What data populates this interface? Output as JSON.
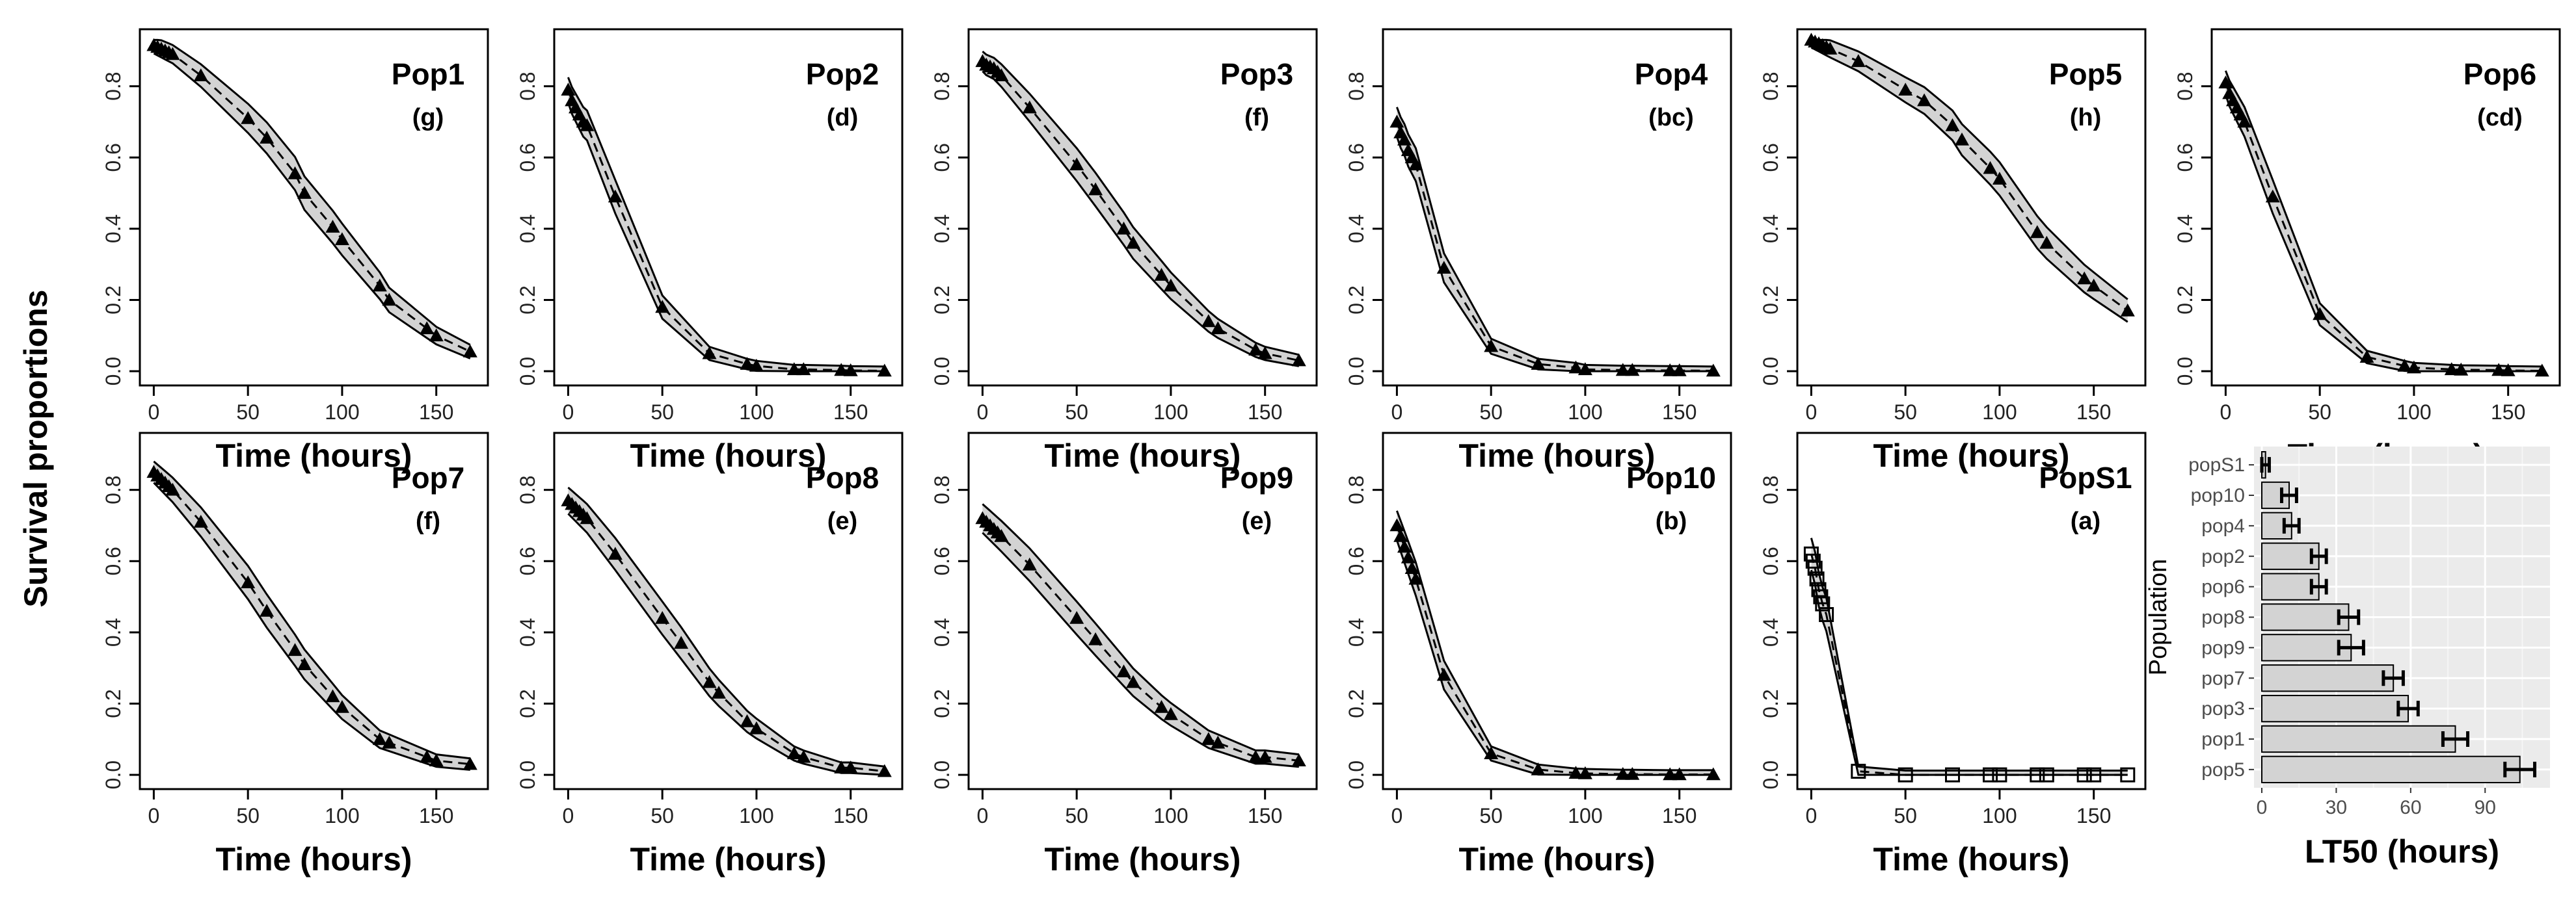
{
  "figure": {
    "shared_ylabel": "Survival proportions",
    "shared_xlabel": "Time (hours)"
  },
  "chart_data": [
    {
      "type": "line",
      "title": "Pop1",
      "letter": "(g)",
      "xlabel": "Time (hours)",
      "ylabel": "Survival proportions",
      "xlim": [
        0,
        170
      ],
      "ylim": [
        0,
        0.92
      ],
      "xticks": [
        0,
        50,
        100,
        150
      ],
      "yticks": [
        0,
        0.2,
        0.4,
        0.6,
        0.8
      ],
      "x": [
        0,
        2,
        4,
        6,
        8,
        10,
        25,
        50,
        60,
        75,
        80,
        95,
        100,
        120,
        125,
        145,
        150,
        168
      ],
      "y": [
        0.915,
        0.91,
        0.905,
        0.9,
        0.895,
        0.89,
        0.83,
        0.71,
        0.655,
        0.555,
        0.5,
        0.405,
        0.37,
        0.24,
        0.2,
        0.12,
        0.1,
        0.055
      ]
    },
    {
      "type": "line",
      "title": "Pop2",
      "letter": "(d)",
      "xlabel": "Time (hours)",
      "ylabel": "",
      "xlim": [
        0,
        170
      ],
      "ylim": [
        0,
        0.92
      ],
      "xticks": [
        0,
        50,
        100,
        150
      ],
      "yticks": [
        0,
        0.2,
        0.4,
        0.6,
        0.8
      ],
      "x": [
        0,
        2,
        4,
        6,
        8,
        10,
        25,
        50,
        75,
        95,
        100,
        120,
        125,
        145,
        150,
        168
      ],
      "y": [
        0.79,
        0.76,
        0.74,
        0.72,
        0.7,
        0.69,
        0.49,
        0.18,
        0.05,
        0.02,
        0.015,
        0.005,
        0.005,
        0.003,
        0.002,
        0.001
      ]
    },
    {
      "type": "line",
      "title": "Pop3",
      "letter": "(f)",
      "xlabel": "Time (hours)",
      "ylabel": "",
      "xlim": [
        0,
        170
      ],
      "ylim": [
        0,
        0.92
      ],
      "xticks": [
        0,
        50,
        100,
        150
      ],
      "yticks": [
        0,
        0.2,
        0.4,
        0.6,
        0.8
      ],
      "x": [
        0,
        2,
        4,
        6,
        8,
        10,
        25,
        50,
        60,
        75,
        80,
        95,
        100,
        120,
        125,
        145,
        150,
        168
      ],
      "y": [
        0.87,
        0.86,
        0.855,
        0.85,
        0.84,
        0.83,
        0.74,
        0.58,
        0.51,
        0.4,
        0.36,
        0.27,
        0.24,
        0.14,
        0.12,
        0.06,
        0.05,
        0.03
      ]
    },
    {
      "type": "line",
      "title": "Pop4",
      "letter": "(bc)",
      "xlabel": "Time (hours)",
      "ylabel": "",
      "xlim": [
        0,
        170
      ],
      "ylim": [
        0,
        0.92
      ],
      "xticks": [
        0,
        50,
        100,
        150
      ],
      "yticks": [
        0,
        0.2,
        0.4,
        0.6,
        0.8
      ],
      "x": [
        0,
        2,
        4,
        6,
        8,
        10,
        25,
        50,
        75,
        95,
        100,
        120,
        125,
        145,
        150,
        168
      ],
      "y": [
        0.7,
        0.67,
        0.65,
        0.62,
        0.6,
        0.58,
        0.29,
        0.07,
        0.02,
        0.01,
        0.005,
        0.003,
        0.003,
        0.002,
        0.002,
        0.001
      ]
    },
    {
      "type": "line",
      "title": "Pop5",
      "letter": "(h)",
      "xlabel": "Time (hours)",
      "ylabel": "",
      "xlim": [
        0,
        170
      ],
      "ylim": [
        0,
        0.92
      ],
      "xticks": [
        0,
        50,
        100,
        150
      ],
      "yticks": [
        0,
        0.2,
        0.4,
        0.6,
        0.8
      ],
      "x": [
        0,
        2,
        4,
        6,
        8,
        10,
        25,
        50,
        60,
        75,
        80,
        95,
        100,
        120,
        125,
        145,
        150,
        168
      ],
      "y": [
        0.93,
        0.925,
        0.92,
        0.915,
        0.91,
        0.905,
        0.87,
        0.79,
        0.76,
        0.69,
        0.65,
        0.57,
        0.54,
        0.39,
        0.36,
        0.26,
        0.24,
        0.17
      ]
    },
    {
      "type": "line",
      "title": "Pop6",
      "letter": "(cd)",
      "xlabel": "Time (hours)",
      "ylabel": "",
      "xlim": [
        0,
        170
      ],
      "ylim": [
        0,
        0.92
      ],
      "xticks": [
        0,
        50,
        100,
        150
      ],
      "yticks": [
        0,
        0.2,
        0.4,
        0.6,
        0.8
      ],
      "x": [
        0,
        2,
        4,
        6,
        8,
        10,
        25,
        50,
        75,
        95,
        100,
        120,
        125,
        145,
        150,
        168
      ],
      "y": [
        0.81,
        0.78,
        0.76,
        0.74,
        0.72,
        0.7,
        0.49,
        0.16,
        0.04,
        0.015,
        0.01,
        0.005,
        0.004,
        0.003,
        0.002,
        0.001
      ]
    },
    {
      "type": "line",
      "title": "Pop7",
      "letter": "(f)",
      "xlabel": "Time (hours)",
      "ylabel": "Survival proportions",
      "xlim": [
        0,
        170
      ],
      "ylim": [
        0,
        0.92
      ],
      "xticks": [
        0,
        50,
        100,
        150
      ],
      "yticks": [
        0,
        0.2,
        0.4,
        0.6,
        0.8
      ],
      "x": [
        0,
        2,
        4,
        6,
        8,
        10,
        25,
        50,
        60,
        75,
        80,
        95,
        100,
        120,
        125,
        145,
        150,
        168
      ],
      "y": [
        0.85,
        0.84,
        0.83,
        0.82,
        0.81,
        0.8,
        0.71,
        0.54,
        0.46,
        0.35,
        0.31,
        0.22,
        0.19,
        0.1,
        0.09,
        0.05,
        0.04,
        0.03
      ]
    },
    {
      "type": "line",
      "title": "Pop8",
      "letter": "(e)",
      "xlabel": "Time (hours)",
      "ylabel": "",
      "xlim": [
        0,
        170
      ],
      "ylim": [
        0,
        0.92
      ],
      "xticks": [
        0,
        50,
        100,
        150
      ],
      "yticks": [
        0,
        0.2,
        0.4,
        0.6,
        0.8
      ],
      "x": [
        0,
        2,
        4,
        6,
        8,
        10,
        25,
        50,
        60,
        75,
        80,
        95,
        100,
        120,
        125,
        145,
        150,
        168
      ],
      "y": [
        0.77,
        0.76,
        0.75,
        0.74,
        0.73,
        0.72,
        0.62,
        0.44,
        0.37,
        0.26,
        0.23,
        0.15,
        0.13,
        0.06,
        0.05,
        0.02,
        0.02,
        0.01
      ]
    },
    {
      "type": "line",
      "title": "Pop9",
      "letter": "(e)",
      "xlabel": "Time (hours)",
      "ylabel": "",
      "xlim": [
        0,
        170
      ],
      "ylim": [
        0,
        0.92
      ],
      "xticks": [
        0,
        50,
        100,
        150
      ],
      "yticks": [
        0,
        0.2,
        0.4,
        0.6,
        0.8
      ],
      "x": [
        0,
        2,
        4,
        6,
        8,
        10,
        25,
        50,
        60,
        75,
        80,
        95,
        100,
        120,
        125,
        145,
        150,
        168
      ],
      "y": [
        0.72,
        0.71,
        0.7,
        0.69,
        0.68,
        0.67,
        0.59,
        0.44,
        0.38,
        0.29,
        0.26,
        0.19,
        0.17,
        0.1,
        0.09,
        0.05,
        0.05,
        0.04
      ]
    },
    {
      "type": "line",
      "title": "Pop10",
      "letter": "(b)",
      "xlabel": "Time (hours)",
      "ylabel": "",
      "xlim": [
        0,
        170
      ],
      "ylim": [
        0,
        0.92
      ],
      "xticks": [
        0,
        50,
        100,
        150
      ],
      "yticks": [
        0,
        0.2,
        0.4,
        0.6,
        0.8
      ],
      "x": [
        0,
        2,
        4,
        6,
        8,
        10,
        25,
        50,
        75,
        95,
        100,
        120,
        125,
        145,
        150,
        168
      ],
      "y": [
        0.7,
        0.67,
        0.64,
        0.61,
        0.58,
        0.55,
        0.28,
        0.06,
        0.015,
        0.005,
        0.004,
        0.002,
        0.002,
        0.001,
        0.001,
        0.001
      ]
    },
    {
      "type": "line",
      "title": "PopS1",
      "letter": "(a)",
      "xlabel": "Time (hours)",
      "ylabel": "",
      "xlim": [
        0,
        170
      ],
      "ylim": [
        0,
        0.92
      ],
      "xticks": [
        0,
        50,
        100,
        150
      ],
      "yticks": [
        0,
        0.2,
        0.4,
        0.6,
        0.8
      ],
      "x": [
        0,
        1,
        2,
        3,
        4,
        5,
        6,
        8,
        25,
        50,
        75,
        95,
        100,
        120,
        125,
        145,
        150,
        168
      ],
      "y": [
        0.62,
        0.6,
        0.58,
        0.55,
        0.52,
        0.5,
        0.48,
        0.45,
        0.01,
        0.0,
        0.0,
        0.0,
        0.0,
        0.0,
        0.0,
        0.0,
        0.0,
        0.0
      ]
    },
    {
      "type": "bar",
      "orientation": "horizontal",
      "title": "",
      "xlabel": "LT50 (hours)",
      "ylabel": "Population",
      "categories": [
        "popS1",
        "pop10",
        "pop4",
        "pop2",
        "pop6",
        "pop8",
        "pop9",
        "pop7",
        "pop3",
        "pop1",
        "pop5"
      ],
      "values": [
        1.5,
        11,
        12,
        23,
        23,
        35,
        36,
        53,
        59,
        78,
        104
      ],
      "errors": [
        1.5,
        3,
        3,
        3,
        3,
        4,
        5,
        4,
        4,
        5,
        6
      ],
      "xlim": [
        0,
        113
      ],
      "xticks": [
        0,
        30,
        60,
        90
      ]
    }
  ]
}
